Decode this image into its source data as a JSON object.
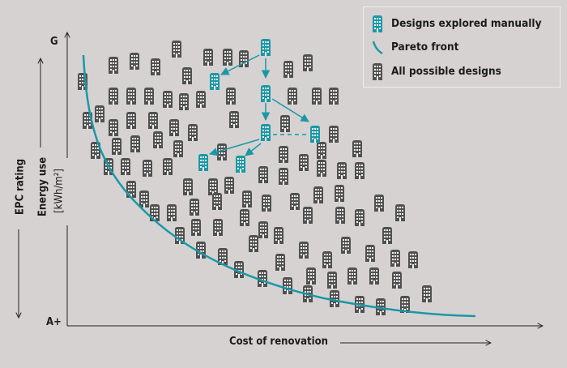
{
  "colors": {
    "background": "#d7d2d2",
    "manual": "#1a98a6",
    "possible": "#505050",
    "pareto": "#1a98a6"
  },
  "legend": {
    "manual": {
      "label": "Designs explored manually",
      "icon": "building-icon"
    },
    "pareto": {
      "label": "Pareto front",
      "icon": "curve-icon"
    },
    "possible": {
      "label": "All possible designs",
      "icon": "building-icon"
    }
  },
  "y_axis": {
    "top_label": "G",
    "bottom_label": "A+",
    "label_epc": "EPC rating",
    "label_energy": "Energy use",
    "label_unit": "[kWh/m²]"
  },
  "x_axis": {
    "label": "Cost of renovation"
  }
}
